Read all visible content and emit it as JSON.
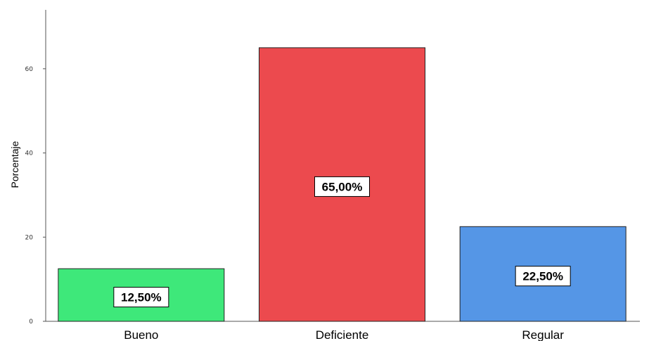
{
  "chart_data": {
    "type": "bar",
    "categories": [
      "Bueno",
      "Deficiente",
      "Regular"
    ],
    "values": [
      12.5,
      65.0,
      22.5
    ],
    "data_labels": [
      "12,50%",
      "65,00%",
      "22,50%"
    ],
    "colors": [
      "#3ee87a",
      "#ec4a4e",
      "#5596e6"
    ],
    "ylabel": "Porcentaje",
    "xlabel": "",
    "title": "",
    "yticks": [
      0,
      20,
      40,
      60
    ],
    "ylim": [
      0,
      74
    ],
    "grid": false,
    "legend": "none"
  }
}
